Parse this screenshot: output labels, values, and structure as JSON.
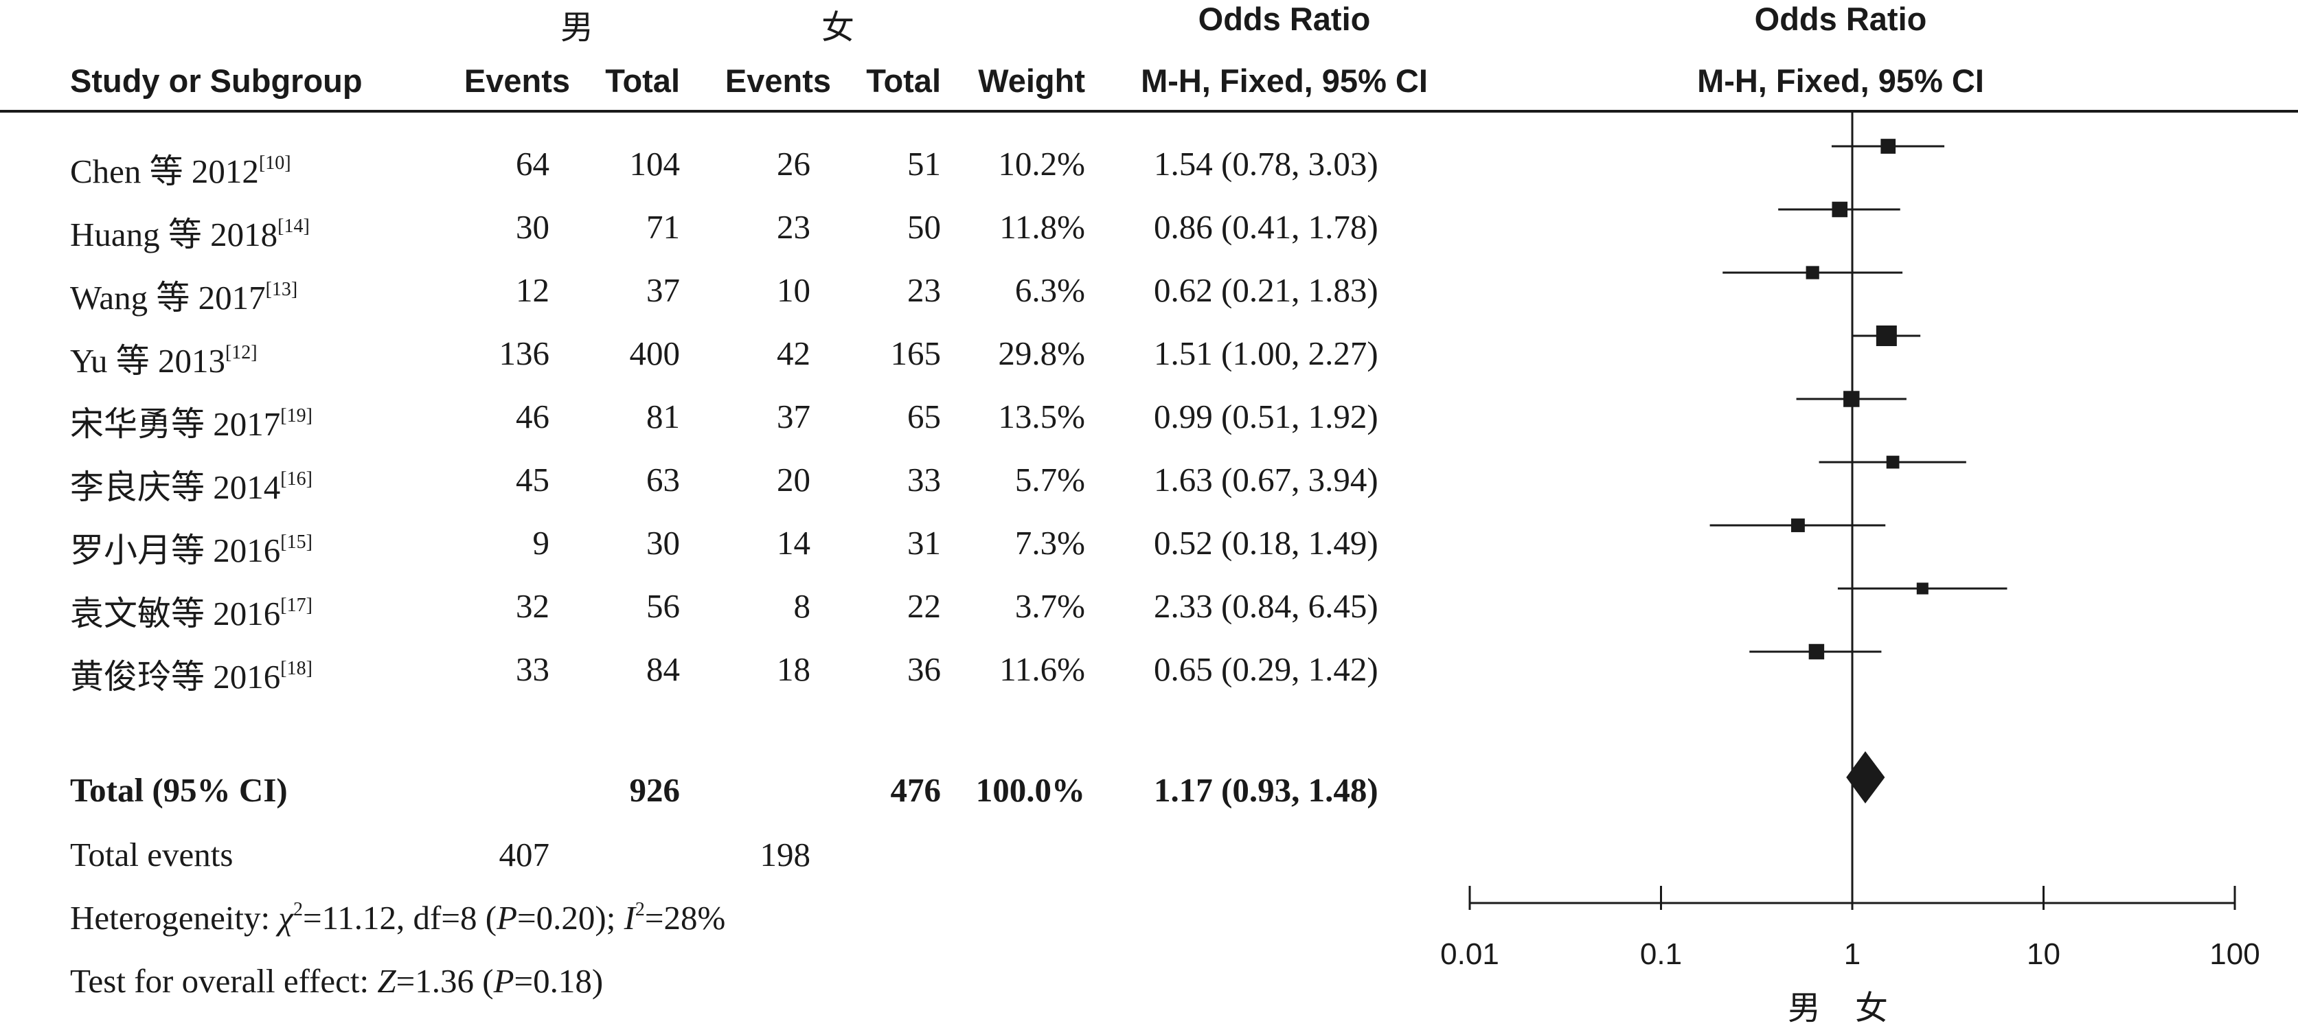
{
  "headers": {
    "group1": "男",
    "group2": "女",
    "or_title": "Odds Ratio",
    "or_method": "M-H, Fixed, 95% CI",
    "plot_title": "Odds Ratio",
    "plot_method": "M-H, Fixed, 95% CI",
    "study": "Study or Subgroup",
    "events1": "Events",
    "total1": "Total",
    "events2": "Events",
    "total2": "Total",
    "weight": "Weight"
  },
  "studies": [
    {
      "name": "Chen 等 2012",
      "ref": "[10]",
      "e1": "64",
      "t1": "104",
      "e2": "26",
      "t2": "51",
      "weight": "10.2%",
      "ci_text": "1.54 (0.78, 3.03)"
    },
    {
      "name": "Huang 等 2018",
      "ref": "[14]",
      "e1": "30",
      "t1": "71",
      "e2": "23",
      "t2": "50",
      "weight": "11.8%",
      "ci_text": "0.86 (0.41, 1.78)"
    },
    {
      "name": "Wang 等 2017",
      "ref": "[13]",
      "e1": "12",
      "t1": "37",
      "e2": "10",
      "t2": "23",
      "weight": "6.3%",
      "ci_text": "0.62 (0.21, 1.83)"
    },
    {
      "name": "Yu 等 2013",
      "ref": "[12]",
      "e1": "136",
      "t1": "400",
      "e2": "42",
      "t2": "165",
      "weight": "29.8%",
      "ci_text": "1.51 (1.00, 2.27)"
    },
    {
      "name": "宋华勇等 2017",
      "ref": "[19]",
      "e1": "46",
      "t1": "81",
      "e2": "37",
      "t2": "65",
      "weight": "13.5%",
      "ci_text": "0.99 (0.51, 1.92)"
    },
    {
      "name": "李良庆等 2014",
      "ref": "[16]",
      "e1": "45",
      "t1": "63",
      "e2": "20",
      "t2": "33",
      "weight": "5.7%",
      "ci_text": "1.63 (0.67, 3.94)"
    },
    {
      "name": "罗小月等 2016",
      "ref": "[15]",
      "e1": "9",
      "t1": "30",
      "e2": "14",
      "t2": "31",
      "weight": "7.3%",
      "ci_text": "0.52 (0.18, 1.49)"
    },
    {
      "name": "袁文敏等 2016",
      "ref": "[17]",
      "e1": "32",
      "t1": "56",
      "e2": "8",
      "t2": "22",
      "weight": "3.7%",
      "ci_text": "2.33 (0.84, 6.45)"
    },
    {
      "name": "黄俊玲等 2016",
      "ref": "[18]",
      "e1": "33",
      "t1": "84",
      "e2": "18",
      "t2": "36",
      "weight": "11.6%",
      "ci_text": "0.65 (0.29, 1.42)"
    }
  ],
  "total": {
    "label": "Total (95% CI)",
    "t1": "926",
    "t2": "476",
    "weight": "100.0%",
    "ci_text": "1.17 (0.93, 1.48)"
  },
  "events": {
    "label": "Total events",
    "e1": "407",
    "e2": "198"
  },
  "heterogeneity": {
    "label": "Heterogeneity: ",
    "chi": "χ",
    "chi_val": "=11.12, df=8 (",
    "p": "P",
    "p_val": "=0.20); ",
    "i": "I",
    "i_val": "=28%"
  },
  "overall": {
    "label": "Test for overall effect: ",
    "z": "Z",
    "z_val": "=1.36 (",
    "p": "P",
    "p_val": "=0.18)"
  },
  "chart_data": {
    "type": "forest",
    "scale": "log",
    "xlim": [
      0.01,
      100
    ],
    "ticks": [
      0.01,
      0.1,
      1,
      10,
      100
    ],
    "tick_labels": [
      "0.01",
      "0.1",
      "1",
      "10",
      "100"
    ],
    "xlabel_left": "男",
    "xlabel_right": "女",
    "reference_line": 1,
    "points": [
      {
        "or": 1.54,
        "lo": 0.78,
        "hi": 3.03,
        "weight": 10.2
      },
      {
        "or": 0.86,
        "lo": 0.41,
        "hi": 1.78,
        "weight": 11.8
      },
      {
        "or": 0.62,
        "lo": 0.21,
        "hi": 1.83,
        "weight": 6.3
      },
      {
        "or": 1.51,
        "lo": 1.0,
        "hi": 2.27,
        "weight": 29.8
      },
      {
        "or": 0.99,
        "lo": 0.51,
        "hi": 1.92,
        "weight": 13.5
      },
      {
        "or": 1.63,
        "lo": 0.67,
        "hi": 3.94,
        "weight": 5.7
      },
      {
        "or": 0.52,
        "lo": 0.18,
        "hi": 1.49,
        "weight": 7.3
      },
      {
        "or": 2.33,
        "lo": 0.84,
        "hi": 6.45,
        "weight": 3.7
      },
      {
        "or": 0.65,
        "lo": 0.29,
        "hi": 1.42,
        "weight": 11.6
      }
    ],
    "summary": {
      "or": 1.17,
      "lo": 0.93,
      "hi": 1.48
    }
  }
}
